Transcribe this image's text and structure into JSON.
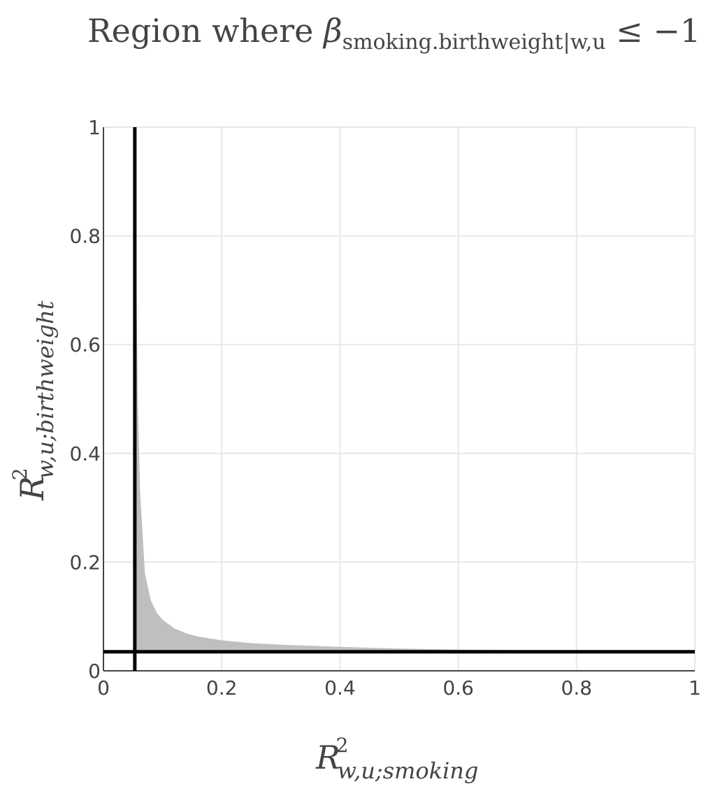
{
  "chart_data": {
    "type": "area",
    "title": {
      "prefix": "Region where ",
      "symbol": "β",
      "subscript": "smoking.birthweight|w,u",
      "suffix": " ≤ −1"
    },
    "xlabel": {
      "main": "R",
      "sup": "2",
      "sub": "w,u;smoking"
    },
    "ylabel": {
      "main": "R",
      "sup": "2",
      "sub": "w,u;birthweight"
    },
    "xlim": [
      0,
      1
    ],
    "ylim": [
      0,
      1
    ],
    "xticks": [
      {
        "value": 0,
        "label": "0"
      },
      {
        "value": 0.2,
        "label": "0.2"
      },
      {
        "value": 0.4,
        "label": "0.4"
      },
      {
        "value": 0.6,
        "label": "0.6"
      },
      {
        "value": 0.8,
        "label": "0.8"
      },
      {
        "value": 1,
        "label": "1"
      }
    ],
    "yticks": [
      {
        "value": 0,
        "label": "0"
      },
      {
        "value": 0.2,
        "label": "0.2"
      },
      {
        "value": 0.4,
        "label": "0.4"
      },
      {
        "value": 0.6,
        "label": "0.6"
      },
      {
        "value": 0.8,
        "label": "0.8"
      },
      {
        "value": 1,
        "label": "1"
      }
    ],
    "grid": true,
    "region": {
      "fill_color": "#bfbfbf",
      "boundary": [
        {
          "x": 0.0535,
          "y": 1.0
        },
        {
          "x": 0.055,
          "y": 0.95
        },
        {
          "x": 0.056,
          "y": 0.7
        },
        {
          "x": 0.058,
          "y": 0.5
        },
        {
          "x": 0.062,
          "y": 0.33
        },
        {
          "x": 0.07,
          "y": 0.18
        },
        {
          "x": 0.08,
          "y": 0.13
        },
        {
          "x": 0.09,
          "y": 0.107
        },
        {
          "x": 0.1,
          "y": 0.094
        },
        {
          "x": 0.12,
          "y": 0.078
        },
        {
          "x": 0.14,
          "y": 0.069
        },
        {
          "x": 0.16,
          "y": 0.063
        },
        {
          "x": 0.2,
          "y": 0.056
        },
        {
          "x": 0.25,
          "y": 0.051
        },
        {
          "x": 0.3,
          "y": 0.048
        },
        {
          "x": 0.4,
          "y": 0.044
        },
        {
          "x": 0.5,
          "y": 0.041
        },
        {
          "x": 0.6,
          "y": 0.039
        },
        {
          "x": 0.7,
          "y": 0.038
        },
        {
          "x": 0.8,
          "y": 0.037
        },
        {
          "x": 1.0,
          "y": 0.035
        }
      ]
    },
    "reference_lines": {
      "vertical_x": 0.053,
      "horizontal_y": 0.035,
      "color": "#000000"
    },
    "colors": {
      "grid": "#e8e8e8",
      "axis": "#444444",
      "text": "#444444"
    }
  }
}
